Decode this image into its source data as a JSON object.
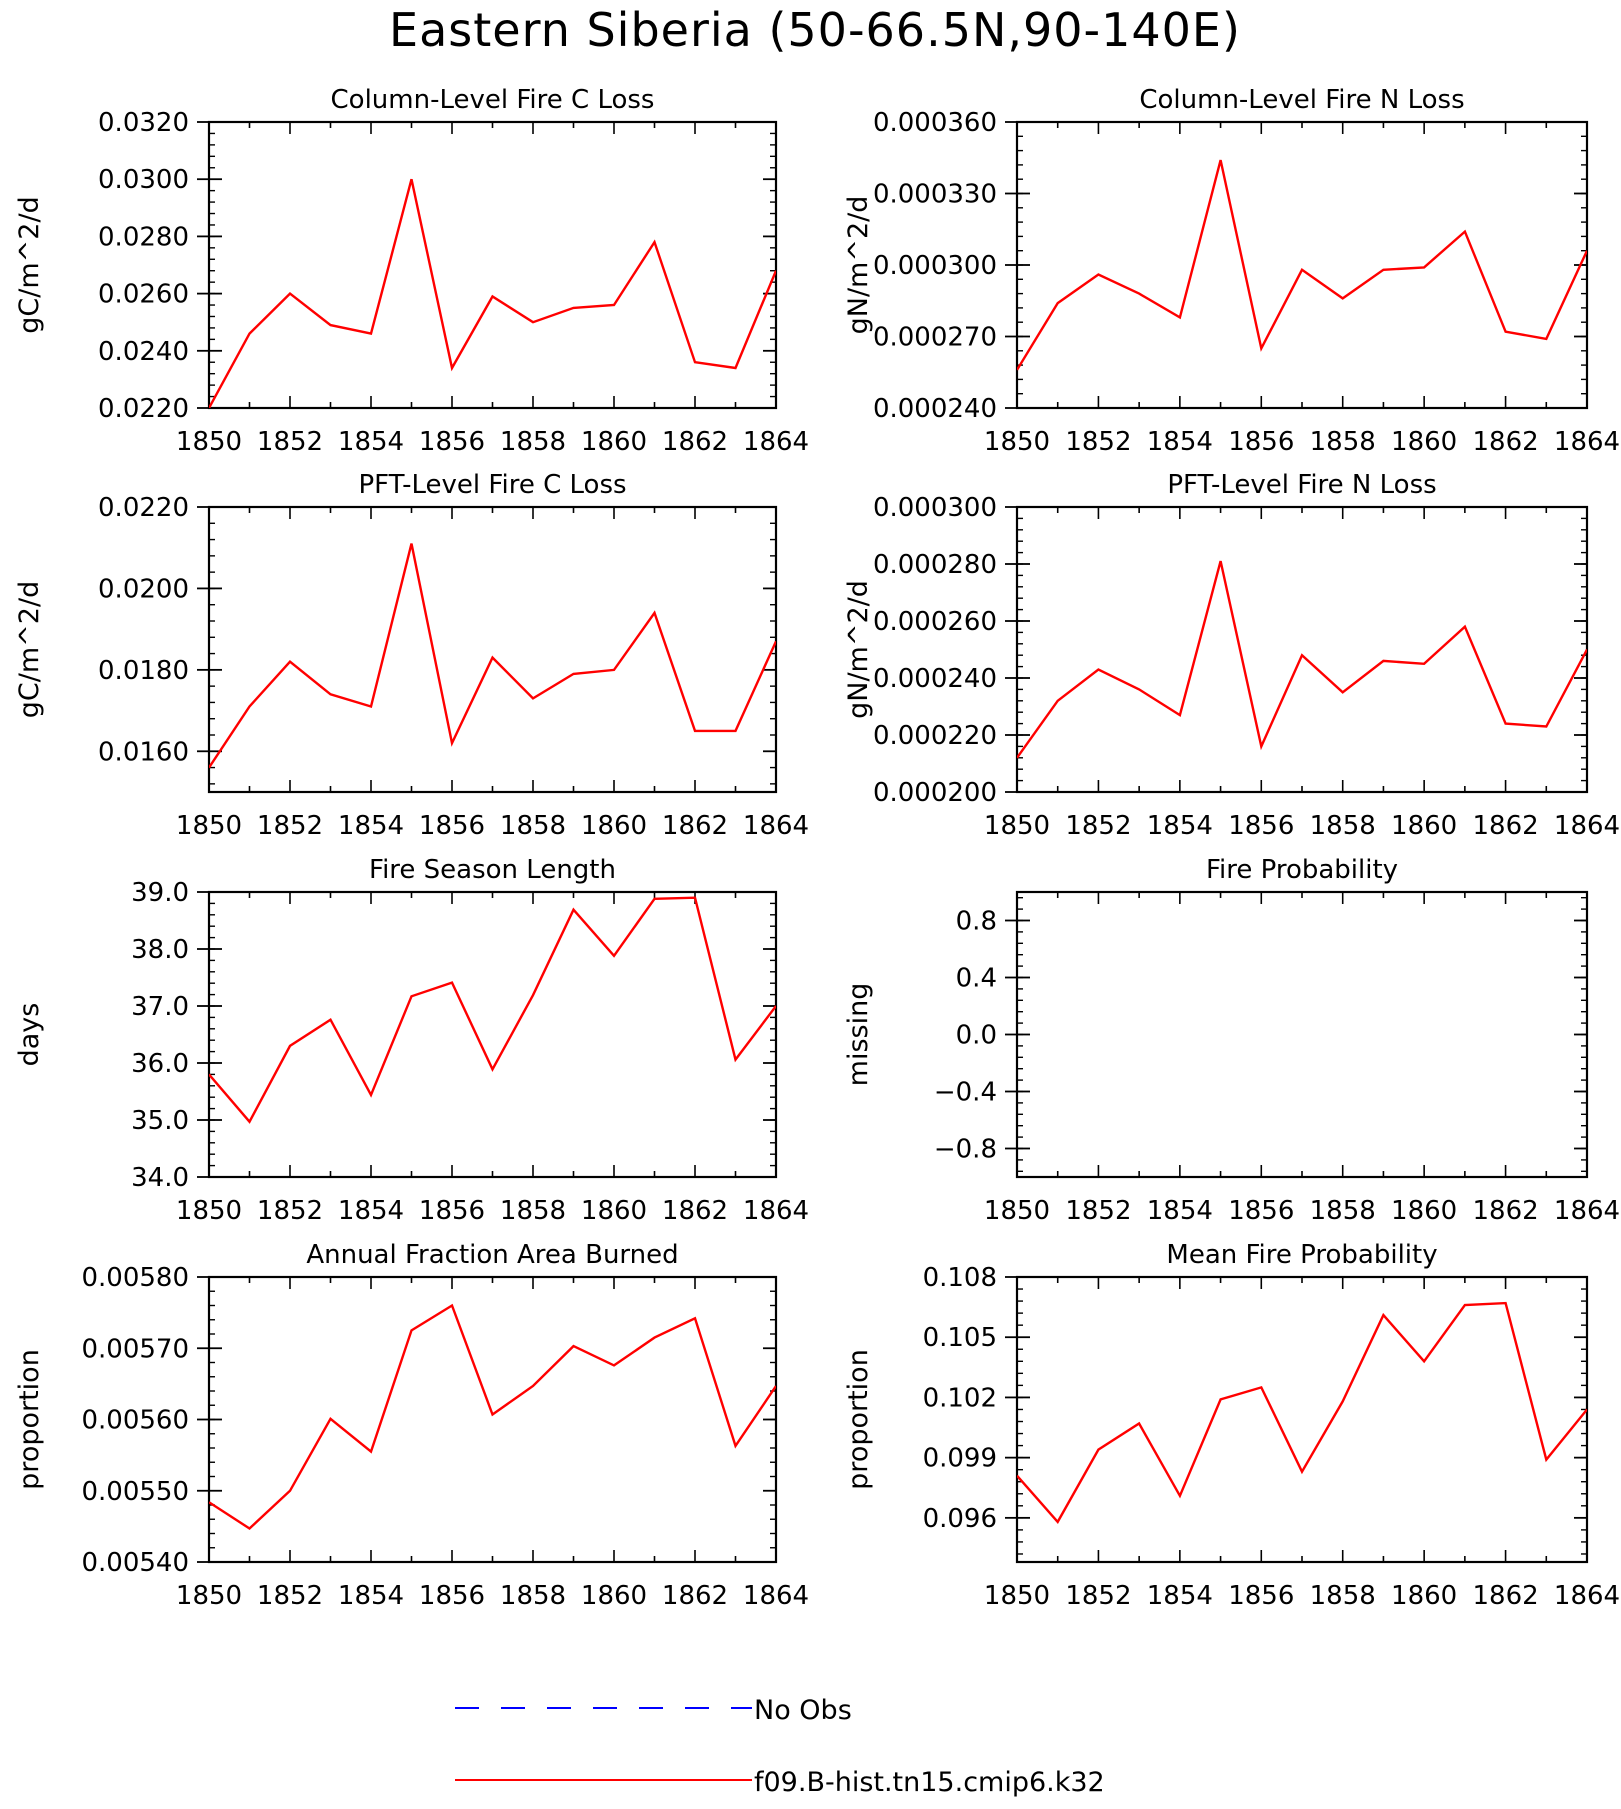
{
  "figure": {
    "title": "Eastern Siberia (50-66.5N,90-140E)"
  },
  "legend": {
    "entries": [
      {
        "label": "No Obs",
        "color": "#0000ff",
        "dash": "dashed"
      },
      {
        "label": "f09.B-hist.tn15.cmip6.k32",
        "color": "#ff0000",
        "dash": "solid"
      }
    ]
  },
  "chart_data": [
    {
      "type": "line",
      "title": "Column-Level Fire C Loss",
      "ylabel": "gC/m^2/d",
      "xlabel": "",
      "x": [
        1850,
        1851,
        1852,
        1853,
        1854,
        1855,
        1856,
        1857,
        1858,
        1859,
        1860,
        1861,
        1862,
        1863,
        1864
      ],
      "xlim": [
        1850,
        1864
      ],
      "xticks": [
        "1850",
        "1852",
        "1854",
        "1856",
        "1858",
        "1860",
        "1862",
        "1864"
      ],
      "ylim": [
        0.022,
        0.032
      ],
      "yticks": [
        "0.0220",
        "0.0240",
        "0.0260",
        "0.0280",
        "0.0300",
        "0.0320"
      ],
      "series": [
        {
          "name": "f09.B-hist.tn15.cmip6.k32",
          "color": "#ff0000",
          "values": [
            0.022,
            0.0246,
            0.026,
            0.0249,
            0.0246,
            0.03,
            0.0234,
            0.0259,
            0.025,
            0.0255,
            0.0256,
            0.0278,
            0.0236,
            0.0234,
            0.0268
          ]
        }
      ]
    },
    {
      "type": "line",
      "title": "Column-Level Fire N Loss",
      "ylabel": "gN/m^2/d",
      "xlabel": "",
      "x": [
        1850,
        1851,
        1852,
        1853,
        1854,
        1855,
        1856,
        1857,
        1858,
        1859,
        1860,
        1861,
        1862,
        1863,
        1864
      ],
      "xlim": [
        1850,
        1864
      ],
      "xticks": [
        "1850",
        "1852",
        "1854",
        "1856",
        "1858",
        "1860",
        "1862",
        "1864"
      ],
      "ylim": [
        0.00024,
        0.00036
      ],
      "yticks": [
        "0.000240",
        "0.000270",
        "0.000300",
        "0.000330",
        "0.000360"
      ],
      "series": [
        {
          "name": "f09.B-hist.tn15.cmip6.k32",
          "color": "#ff0000",
          "values": [
            0.000256,
            0.000284,
            0.000296,
            0.000288,
            0.000278,
            0.000344,
            0.000265,
            0.000298,
            0.000286,
            0.000298,
            0.000299,
            0.000314,
            0.000272,
            0.000269,
            0.000306
          ]
        }
      ]
    },
    {
      "type": "line",
      "title": "PFT-Level Fire C Loss",
      "ylabel": "gC/m^2/d",
      "xlabel": "",
      "x": [
        1850,
        1851,
        1852,
        1853,
        1854,
        1855,
        1856,
        1857,
        1858,
        1859,
        1860,
        1861,
        1862,
        1863,
        1864
      ],
      "xlim": [
        1850,
        1864
      ],
      "xticks": [
        "1850",
        "1852",
        "1854",
        "1856",
        "1858",
        "1860",
        "1862",
        "1864"
      ],
      "ylim": [
        0.015,
        0.022
      ],
      "yticks": [
        "0.0160",
        "0.0180",
        "0.0200",
        "0.0220"
      ],
      "series": [
        {
          "name": "f09.B-hist.tn15.cmip6.k32",
          "color": "#ff0000",
          "values": [
            0.0156,
            0.0171,
            0.0182,
            0.0174,
            0.0171,
            0.0211,
            0.0162,
            0.0183,
            0.0173,
            0.0179,
            0.018,
            0.0194,
            0.0165,
            0.0165,
            0.0187
          ]
        }
      ]
    },
    {
      "type": "line",
      "title": "PFT-Level Fire N Loss",
      "ylabel": "gN/m^2/d",
      "xlabel": "",
      "x": [
        1850,
        1851,
        1852,
        1853,
        1854,
        1855,
        1856,
        1857,
        1858,
        1859,
        1860,
        1861,
        1862,
        1863,
        1864
      ],
      "xlim": [
        1850,
        1864
      ],
      "xticks": [
        "1850",
        "1852",
        "1854",
        "1856",
        "1858",
        "1860",
        "1862",
        "1864"
      ],
      "ylim": [
        0.0002,
        0.0003
      ],
      "yticks": [
        "0.000200",
        "0.000220",
        "0.000240",
        "0.000260",
        "0.000280",
        "0.000300"
      ],
      "series": [
        {
          "name": "f09.B-hist.tn15.cmip6.k32",
          "color": "#ff0000",
          "values": [
            0.000212,
            0.000232,
            0.000243,
            0.000236,
            0.000227,
            0.000281,
            0.000216,
            0.000248,
            0.000235,
            0.000246,
            0.000245,
            0.000258,
            0.000224,
            0.000223,
            0.00025
          ]
        }
      ]
    },
    {
      "type": "line",
      "title": "Fire Season Length",
      "ylabel": "days",
      "xlabel": "",
      "x": [
        1850,
        1851,
        1852,
        1853,
        1854,
        1855,
        1856,
        1857,
        1858,
        1859,
        1860,
        1861,
        1862,
        1863,
        1864
      ],
      "xlim": [
        1850,
        1864
      ],
      "xticks": [
        "1850",
        "1852",
        "1854",
        "1856",
        "1858",
        "1860",
        "1862",
        "1864"
      ],
      "ylim": [
        34.0,
        39.0
      ],
      "yticks": [
        "34.0",
        "35.0",
        "36.0",
        "37.0",
        "38.0",
        "39.0"
      ],
      "series": [
        {
          "name": "f09.B-hist.tn15.cmip6.k32",
          "color": "#ff0000",
          "values": [
            35.8,
            34.97,
            36.3,
            36.76,
            35.44,
            37.17,
            37.41,
            35.89,
            37.19,
            38.69,
            37.88,
            38.88,
            38.9,
            36.06,
            37.0
          ]
        }
      ]
    },
    {
      "type": "line",
      "title": "Fire Probability",
      "ylabel": "missing",
      "xlabel": "",
      "x": [],
      "xlim": [
        1850,
        1864
      ],
      "xticks": [
        "1850",
        "1852",
        "1854",
        "1856",
        "1858",
        "1860",
        "1862",
        "1864"
      ],
      "ylim": [
        -1.0,
        1.0
      ],
      "yticks": [
        "−0.8",
        "−0.4",
        "0.0",
        "0.4",
        "0.8"
      ],
      "series": []
    },
    {
      "type": "line",
      "title": "Annual Fraction Area Burned",
      "ylabel": "proportion",
      "xlabel": "",
      "x": [
        1850,
        1851,
        1852,
        1853,
        1854,
        1855,
        1856,
        1857,
        1858,
        1859,
        1860,
        1861,
        1862,
        1863,
        1864
      ],
      "xlim": [
        1850,
        1864
      ],
      "xticks": [
        "1850",
        "1852",
        "1854",
        "1856",
        "1858",
        "1860",
        "1862",
        "1864"
      ],
      "ylim": [
        0.0054,
        0.0058
      ],
      "yticks": [
        "0.00540",
        "0.00550",
        "0.00560",
        "0.00570",
        "0.00580"
      ],
      "series": [
        {
          "name": "f09.B-hist.tn15.cmip6.k32",
          "color": "#ff0000",
          "values": [
            0.005484,
            0.005447,
            0.0055,
            0.005601,
            0.005555,
            0.005725,
            0.00576,
            0.005607,
            0.005647,
            0.005703,
            0.005676,
            0.005715,
            0.005742,
            0.005563,
            0.005647
          ]
        }
      ]
    },
    {
      "type": "line",
      "title": "Mean Fire Probability",
      "ylabel": "proportion",
      "xlabel": "",
      "x": [
        1850,
        1851,
        1852,
        1853,
        1854,
        1855,
        1856,
        1857,
        1858,
        1859,
        1860,
        1861,
        1862,
        1863,
        1864
      ],
      "xlim": [
        1850,
        1864
      ],
      "xticks": [
        "1850",
        "1852",
        "1854",
        "1856",
        "1858",
        "1860",
        "1862",
        "1864"
      ],
      "ylim": [
        0.0938,
        0.108
      ],
      "yticks": [
        "0.096",
        "0.099",
        "0.102",
        "0.105",
        "0.108"
      ],
      "series": [
        {
          "name": "f09.B-hist.tn15.cmip6.k32",
          "color": "#ff0000",
          "values": [
            0.0981,
            0.0958,
            0.0994,
            0.1007,
            0.0971,
            0.1019,
            0.1025,
            0.0983,
            0.1018,
            0.1061,
            0.1038,
            0.1066,
            0.1067,
            0.0989,
            0.1014
          ]
        }
      ]
    }
  ]
}
